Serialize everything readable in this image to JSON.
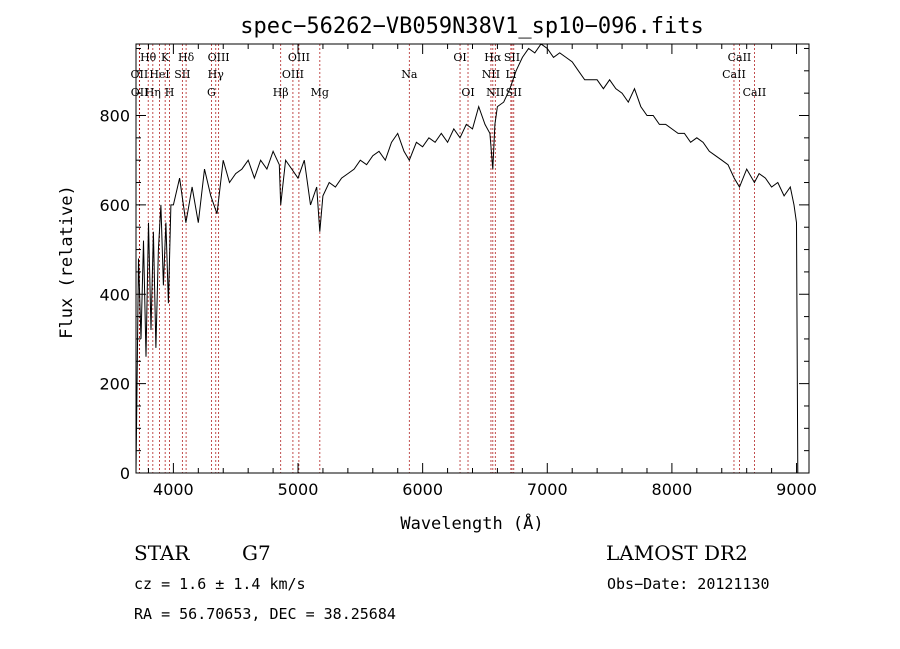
{
  "chart_data": {
    "type": "line",
    "title": "spec−56262−VB059N38V1_sp10−096.fits",
    "xlabel": "Wavelength (Å)",
    "ylabel": "Flux (relative)",
    "xlim": [
      3700,
      9100
    ],
    "ylim": [
      0,
      960
    ],
    "xticks": [
      4000,
      5000,
      6000,
      7000,
      8000,
      9000
    ],
    "yticks": [
      0,
      200,
      400,
      600,
      800
    ],
    "series": [
      {
        "x": [
          3700,
          3720,
          3740,
          3760,
          3780,
          3800,
          3820,
          3840,
          3860,
          3880,
          3900,
          3920,
          3940,
          3960,
          3980,
          4000,
          4050,
          4100,
          4150,
          4200,
          4250,
          4300,
          4350,
          4400,
          4450,
          4500,
          4550,
          4600,
          4650,
          4700,
          4750,
          4800,
          4850,
          4861,
          4900,
          4950,
          5000,
          5050,
          5100,
          5150,
          5175,
          5200,
          5250,
          5300,
          5350,
          5400,
          5450,
          5500,
          5550,
          5600,
          5650,
          5700,
          5750,
          5800,
          5850,
          5893,
          5950,
          6000,
          6050,
          6100,
          6150,
          6200,
          6250,
          6300,
          6350,
          6400,
          6450,
          6500,
          6540,
          6563,
          6580,
          6600,
          6650,
          6700,
          6750,
          6800,
          6850,
          6900,
          6950,
          7000,
          7050,
          7100,
          7150,
          7200,
          7250,
          7300,
          7350,
          7400,
          7450,
          7500,
          7550,
          7600,
          7650,
          7700,
          7750,
          7800,
          7850,
          7900,
          7950,
          8000,
          8050,
          8100,
          8150,
          8200,
          8250,
          8300,
          8350,
          8400,
          8450,
          8500,
          8542,
          8600,
          8662,
          8700,
          8750,
          8800,
          8850,
          8900,
          8950,
          8980,
          9000,
          9010
        ],
        "y": [
          0,
          480,
          300,
          520,
          260,
          560,
          320,
          540,
          280,
          500,
          600,
          420,
          560,
          380,
          600,
          600,
          660,
          560,
          640,
          560,
          680,
          620,
          580,
          700,
          650,
          670,
          680,
          700,
          660,
          700,
          680,
          720,
          690,
          600,
          700,
          680,
          660,
          700,
          600,
          640,
          540,
          620,
          650,
          640,
          660,
          670,
          680,
          700,
          690,
          710,
          720,
          700,
          740,
          760,
          720,
          700,
          740,
          730,
          750,
          740,
          760,
          740,
          770,
          750,
          780,
          770,
          820,
          780,
          760,
          680,
          780,
          820,
          830,
          860,
          900,
          930,
          950,
          940,
          960,
          950,
          930,
          940,
          930,
          920,
          900,
          880,
          880,
          880,
          860,
          880,
          860,
          850,
          830,
          860,
          820,
          800,
          800,
          780,
          780,
          770,
          760,
          760,
          740,
          750,
          740,
          720,
          710,
          700,
          690,
          660,
          640,
          680,
          650,
          670,
          660,
          640,
          650,
          620,
          640,
          600,
          560,
          0
        ]
      }
    ],
    "spectral_lines": [
      {
        "label": "Hθ",
        "wavelength": 3798,
        "row": 1
      },
      {
        "label": "OII",
        "wavelength": 3727,
        "row": 2
      },
      {
        "label": "OII",
        "wavelength": 3729,
        "row": 3
      },
      {
        "label": "HeI",
        "wavelength": 3889,
        "row": 2
      },
      {
        "label": "Hη",
        "wavelength": 3835,
        "row": 3
      },
      {
        "label": "K",
        "wavelength": 3934,
        "row": 1
      },
      {
        "label": "H",
        "wavelength": 3969,
        "row": 3
      },
      {
        "label": "SII",
        "wavelength": 4072,
        "row": 2
      },
      {
        "label": "Hδ",
        "wavelength": 4102,
        "row": 1
      },
      {
        "label": "OIII",
        "wavelength": 4363,
        "row": 1
      },
      {
        "label": "Hγ",
        "wavelength": 4340,
        "row": 2
      },
      {
        "label": "G",
        "wavelength": 4305,
        "row": 3
      },
      {
        "label": "Hβ",
        "wavelength": 4861,
        "row": 3
      },
      {
        "label": "OIII",
        "wavelength": 5007,
        "row": 1
      },
      {
        "label": "OIII",
        "wavelength": 4959,
        "row": 2
      },
      {
        "label": "Mg",
        "wavelength": 5175,
        "row": 3
      },
      {
        "label": "Na",
        "wavelength": 5893,
        "row": 2
      },
      {
        "label": "OI",
        "wavelength": 6300,
        "row": 1
      },
      {
        "label": "OI",
        "wavelength": 6364,
        "row": 3
      },
      {
        "label": "Hα",
        "wavelength": 6563,
        "row": 1
      },
      {
        "label": "NII",
        "wavelength": 6548,
        "row": 2
      },
      {
        "label": "NII",
        "wavelength": 6583,
        "row": 3
      },
      {
        "label": "SII",
        "wavelength": 6717,
        "row": 1
      },
      {
        "label": "Li",
        "wavelength": 6708,
        "row": 2
      },
      {
        "label": "SII",
        "wavelength": 6731,
        "row": 3
      },
      {
        "label": "CaII",
        "wavelength": 8542,
        "row": 1
      },
      {
        "label": "CaII",
        "wavelength": 8498,
        "row": 2
      },
      {
        "label": "CaII",
        "wavelength": 8662,
        "row": 3
      }
    ],
    "grid": false
  },
  "info": {
    "class": "STAR",
    "subclass": "G7",
    "release": "LAMOST DR2",
    "cz": "cz = 1.6 ± 1.4 km/s",
    "obs_date": "Obs−Date: 20121130",
    "coords": "RA =  56.70653, DEC =  38.25684"
  }
}
